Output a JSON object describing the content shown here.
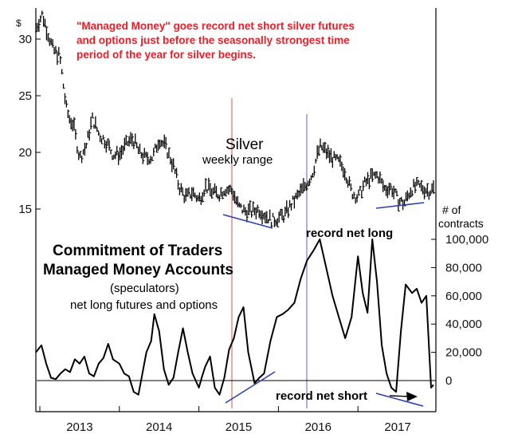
{
  "chart_data": [
    {
      "type": "bar",
      "subtype": "weekly-range",
      "title": "Silver",
      "subtitle": "weekly range",
      "y_unit": "$",
      "ylim": [
        13,
        33
      ],
      "y_ticks": [
        15,
        20,
        25,
        30
      ],
      "x_ticks": [
        "2013",
        "2014",
        "2015",
        "2016",
        "2017"
      ],
      "xlim": [
        2012.95,
        2017.98
      ],
      "price_path": {
        "x": [
          2012.95,
          2013.03,
          2013.08,
          2013.17,
          2013.25,
          2013.33,
          2013.37,
          2013.42,
          2013.5,
          2013.58,
          2013.66,
          2013.75,
          2013.83,
          2013.92,
          2014.0,
          2014.1,
          2014.17,
          2014.25,
          2014.33,
          2014.42,
          2014.5,
          2014.58,
          2014.67,
          2014.75,
          2014.83,
          2014.92,
          2015.0,
          2015.08,
          2015.17,
          2015.25,
          2015.33,
          2015.42,
          2015.5,
          2015.58,
          2015.67,
          2015.75,
          2015.83,
          2015.92,
          2016.0,
          2016.08,
          2016.17,
          2016.25,
          2016.33,
          2016.42,
          2016.5,
          2016.53,
          2016.58,
          2016.67,
          2016.75,
          2016.83,
          2016.92,
          2017.0,
          2017.08,
          2017.17,
          2017.25,
          2017.33,
          2017.42,
          2017.5,
          2017.58,
          2017.67,
          2017.75,
          2017.83,
          2017.9,
          2017.95
        ],
        "y": [
          31.0,
          32.2,
          31.0,
          29.0,
          28.5,
          24.0,
          23.0,
          22.5,
          19.5,
          20.5,
          23.0,
          21.5,
          21.0,
          19.8,
          19.8,
          20.8,
          21.2,
          20.0,
          19.5,
          19.6,
          21.2,
          20.5,
          19.0,
          17.0,
          16.0,
          16.5,
          15.8,
          17.0,
          16.5,
          16.3,
          16.8,
          16.6,
          15.2,
          14.8,
          14.8,
          15.0,
          14.5,
          14.0,
          14.2,
          14.5,
          15.5,
          16.2,
          17.0,
          18.0,
          20.0,
          20.5,
          20.2,
          19.5,
          19.2,
          18.5,
          16.5,
          16.0,
          17.2,
          17.8,
          18.0,
          16.8,
          16.9,
          15.8,
          15.5,
          16.8,
          17.0,
          16.8,
          16.6,
          16.8
        ]
      }
    },
    {
      "type": "line",
      "title": "Commitment of Traders\nManaged Money Accounts",
      "subtitle": "(speculators)",
      "series": [
        {
          "name": "net long futures and options",
          "x": [
            2012.95,
            2013.02,
            2013.08,
            2013.14,
            2013.2,
            2013.26,
            2013.32,
            2013.38,
            2013.44,
            2013.5,
            2013.56,
            2013.62,
            2013.68,
            2013.74,
            2013.8,
            2013.86,
            2013.92,
            2014.0,
            2014.06,
            2014.12,
            2014.18,
            2014.24,
            2014.28,
            2014.34,
            2014.4,
            2014.44,
            2014.5,
            2014.56,
            2014.62,
            2014.68,
            2014.74,
            2014.8,
            2014.86,
            2014.92,
            2015.0,
            2015.04,
            2015.08,
            2015.14,
            2015.2,
            2015.26,
            2015.32,
            2015.38,
            2015.44,
            2015.5,
            2015.56,
            2015.62,
            2015.7,
            2015.76,
            2015.82,
            2015.9,
            2015.98,
            2016.05,
            2016.12,
            2016.2,
            2016.28,
            2016.36,
            2016.44,
            2016.52,
            2016.6,
            2016.68,
            2016.76,
            2016.84,
            2016.92,
            2017.0,
            2017.06,
            2017.12,
            2017.18,
            2017.24,
            2017.3,
            2017.36,
            2017.42,
            2017.48,
            2017.54,
            2017.6,
            2017.68,
            2017.74,
            2017.8,
            2017.86,
            2017.92,
            2017.95
          ],
          "y": [
            20000,
            25000,
            12000,
            2000,
            1000,
            5000,
            8000,
            6000,
            15000,
            12000,
            17000,
            5000,
            3000,
            12000,
            16000,
            26000,
            15000,
            12000,
            5000,
            3000,
            -8000,
            -10000,
            2000,
            20000,
            28000,
            47000,
            35000,
            8000,
            -3000,
            2000,
            20000,
            37000,
            20000,
            5000,
            -5000,
            3000,
            10000,
            17000,
            -5000,
            -10000,
            2000,
            22000,
            30000,
            45000,
            52000,
            20000,
            -2000,
            2000,
            5000,
            28000,
            45000,
            47000,
            50000,
            55000,
            72000,
            85000,
            92000,
            100000,
            80000,
            60000,
            45000,
            30000,
            45000,
            88000,
            62000,
            48000,
            100000,
            70000,
            25000,
            5000,
            -5000,
            -8000,
            35000,
            68000,
            62000,
            65000,
            55000,
            60000,
            -5000,
            -3000
          ]
        }
      ],
      "ylabel": "# of\ncontracts",
      "ylim": [
        -25000,
        105000
      ],
      "y_ticks": [
        0,
        20000,
        40000,
        60000,
        80000,
        100000
      ],
      "y_tick_labels": [
        "0",
        "20,000",
        "40,000",
        "60,000",
        "80,000",
        "100,000"
      ]
    }
  ],
  "annotations": {
    "headline": [
      "\"Managed Money\" goes record net short silver futures",
      "and options just before the seasonally strongest time",
      "period of the year for silver begins."
    ],
    "silver_title": "Silver",
    "silver_subtitle": "weekly range",
    "cot_title_1": "Commitment of Traders",
    "cot_title_2": "Managed Money Accounts",
    "cot_sub_1": "(speculators)",
    "cot_sub_2": "net long futures and options",
    "record_long": "record net long",
    "record_short": "record net short",
    "y_unit_label": "$",
    "contracts_label_1": "# of",
    "contracts_label_2": "contracts"
  },
  "colors": {
    "headline": "#e8202a",
    "price_bars": "#000000",
    "cot_line": "#000000",
    "marker_2015": "#e36a6a",
    "marker_2016": "#7a7ad8",
    "trendlines": "#2d3fb5"
  }
}
